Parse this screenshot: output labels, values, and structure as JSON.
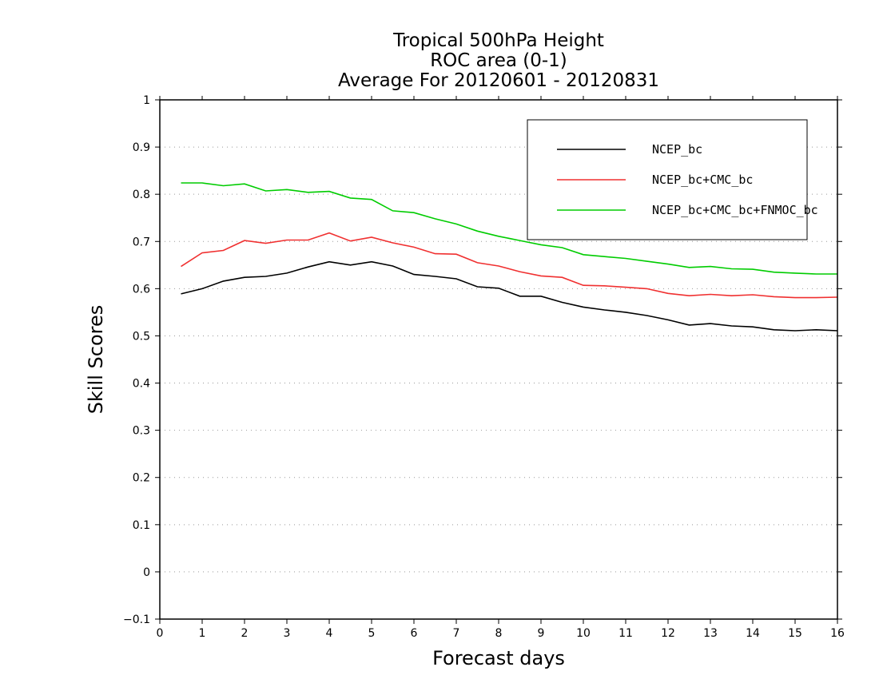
{
  "chart_data": {
    "type": "line",
    "title": [
      "Tropical 500hPa Height",
      "ROC area (0-1)",
      "Average For 20120601 - 20120831"
    ],
    "xlabel": "Forecast days",
    "ylabel": "Skill Scores",
    "xlim": [
      0,
      16
    ],
    "ylim": [
      -0.1,
      1
    ],
    "xticks": [
      "0",
      "1",
      "2",
      "3",
      "4",
      "5",
      "6",
      "7",
      "8",
      "9",
      "10",
      "11",
      "12",
      "13",
      "14",
      "15",
      "16"
    ],
    "yticks": [
      "−0.1",
      "0",
      "0.1",
      "0.2",
      "0.3",
      "0.4",
      "0.5",
      "0.6",
      "0.7",
      "0.8",
      "0.9",
      "1"
    ],
    "grid": "horizontal dotted",
    "legend_position": "top-right",
    "x": [
      0.5,
      1,
      1.5,
      2,
      2.5,
      3,
      3.5,
      4,
      4.5,
      5,
      5.5,
      6,
      6.5,
      7,
      7.5,
      8,
      8.5,
      9,
      9.5,
      10,
      10.5,
      11,
      11.5,
      12,
      12.5,
      13,
      13.5,
      14,
      14.5,
      15,
      15.5,
      16
    ],
    "series": [
      {
        "name": "NCEP_bc",
        "color": "#000000",
        "values": [
          0.589,
          0.6,
          0.616,
          0.624,
          0.626,
          0.633,
          0.646,
          0.657,
          0.65,
          0.657,
          0.648,
          0.63,
          0.626,
          0.621,
          0.604,
          0.601,
          0.584,
          0.584,
          0.571,
          0.561,
          0.555,
          0.55,
          0.543,
          0.534,
          0.523,
          0.526,
          0.521,
          0.519,
          0.513,
          0.511,
          0.513,
          0.511
        ]
      },
      {
        "name": "NCEP_bc+CMC_bc",
        "color": "#f03030",
        "values": [
          0.647,
          0.676,
          0.681,
          0.702,
          0.696,
          0.703,
          0.703,
          0.718,
          0.701,
          0.709,
          0.697,
          0.688,
          0.674,
          0.673,
          0.655,
          0.648,
          0.636,
          0.627,
          0.624,
          0.607,
          0.606,
          0.603,
          0.6,
          0.59,
          0.585,
          0.588,
          0.585,
          0.587,
          0.583,
          0.581,
          0.581,
          0.582
        ]
      },
      {
        "name": "NCEP_bc+CMC_bc+FNMOC_bc",
        "color": "#00cc00",
        "values": [
          0.824,
          0.824,
          0.818,
          0.822,
          0.807,
          0.81,
          0.804,
          0.806,
          0.792,
          0.789,
          0.765,
          0.761,
          0.748,
          0.737,
          0.722,
          0.711,
          0.702,
          0.693,
          0.687,
          0.672,
          0.668,
          0.664,
          0.658,
          0.652,
          0.645,
          0.647,
          0.642,
          0.641,
          0.635,
          0.633,
          0.631,
          0.631
        ]
      }
    ]
  }
}
